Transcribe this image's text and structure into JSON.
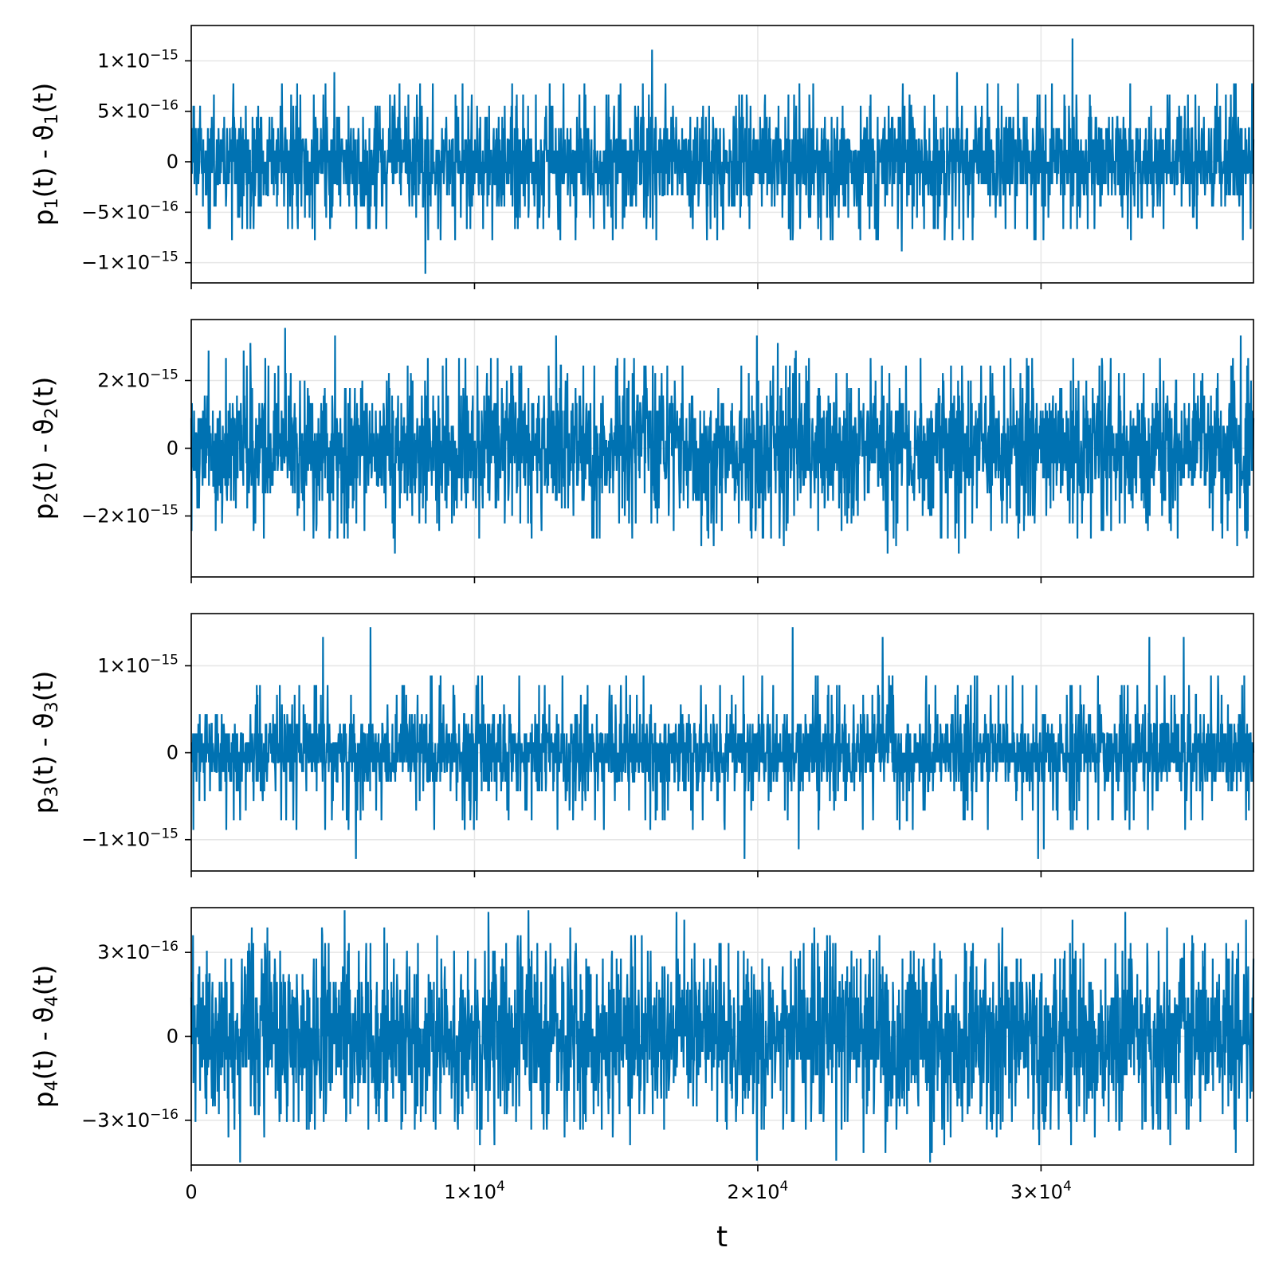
{
  "colors": {
    "series": "#0072b2",
    "grid": "#e6e6e6",
    "frame": "#000000"
  },
  "chart_data": {
    "type": "line",
    "shared_x": {
      "label": "t",
      "xlim": [
        0,
        37500
      ],
      "ticks": [
        {
          "value": 0,
          "mantissa": "0",
          "exponent": ""
        },
        {
          "value": 10000,
          "mantissa": "1×10",
          "exponent": "4"
        },
        {
          "value": 20000,
          "mantissa": "2×10",
          "exponent": "4"
        },
        {
          "value": 30000,
          "mantissa": "3×10",
          "exponent": "4"
        }
      ]
    },
    "grid": true,
    "panels": [
      {
        "ylabel": {
          "main": "p",
          "sub1": "1",
          "mid": "(t) - ϑ",
          "sub2": "1",
          "end": "(t)"
        },
        "ylim": [
          -1.2e-15,
          1.35e-15
        ],
        "yticks": [
          {
            "value": 1e-15,
            "mantissa": "1×10",
            "exponent": "−15"
          },
          {
            "value": 5e-16,
            "mantissa": "5×10",
            "exponent": "−16"
          },
          {
            "value": 0,
            "mantissa": "0",
            "exponent": ""
          },
          {
            "value": -5e-16,
            "mantissa": "−5×10",
            "exponent": "−16"
          },
          {
            "value": -1e-15,
            "mantissa": "−1×10",
            "exponent": "−15"
          }
        ],
        "noise": {
          "bulk": 3.5e-16,
          "typical_peak": 7.5e-16,
          "extreme": 1.22e-15,
          "min_extreme": -1.1e-15,
          "quantum": 1.11e-16,
          "samples": 3000
        }
      },
      {
        "ylabel": {
          "main": "p",
          "sub1": "2",
          "mid": "(t) - ϑ",
          "sub2": "2",
          "end": "(t)"
        },
        "ylim": [
          -3.8e-15,
          3.8e-15
        ],
        "yticks": [
          {
            "value": 2e-15,
            "mantissa": "2×10",
            "exponent": "−15"
          },
          {
            "value": 0,
            "mantissa": "0",
            "exponent": ""
          },
          {
            "value": -2e-15,
            "mantissa": "−2×10",
            "exponent": "−15"
          }
        ],
        "noise": {
          "bulk": 1.3e-15,
          "typical_peak": 2.6e-15,
          "extreme": 3.5e-15,
          "min_extreme": -3.4e-15,
          "quantum": 2.22e-16,
          "samples": 3000
        }
      },
      {
        "ylabel": {
          "main": "p",
          "sub1": "3",
          "mid": "(t) - ϑ",
          "sub2": "3",
          "end": "(t)"
        },
        "ylim": [
          -1.36e-15,
          1.6e-15
        ],
        "yticks": [
          {
            "value": 1e-15,
            "mantissa": "1×10",
            "exponent": "−15"
          },
          {
            "value": 0,
            "mantissa": "0",
            "exponent": ""
          },
          {
            "value": -1e-15,
            "mantissa": "−1×10",
            "exponent": "−15"
          }
        ],
        "noise": {
          "bulk": 3.3e-16,
          "typical_peak": 8.5e-16,
          "extreme": 1.44e-15,
          "min_extreme": -1.22e-15,
          "quantum": 1.11e-16,
          "samples": 3000
        }
      },
      {
        "ylabel": {
          "main": "p",
          "sub1": "4",
          "mid": "(t) - ϑ",
          "sub2": "4",
          "end": "(t)"
        },
        "ylim": [
          -4.6e-16,
          4.6e-16
        ],
        "yticks": [
          {
            "value": 3e-16,
            "mantissa": "3×10",
            "exponent": "−16"
          },
          {
            "value": 0,
            "mantissa": "0",
            "exponent": ""
          },
          {
            "value": -3e-16,
            "mantissa": "−3×10",
            "exponent": "−16"
          }
        ],
        "noise": {
          "bulk": 2e-16,
          "typical_peak": 3.3e-16,
          "extreme": 4.2e-16,
          "min_extreme": -4e-16,
          "quantum": 2.78e-17,
          "samples": 3000
        }
      }
    ]
  }
}
